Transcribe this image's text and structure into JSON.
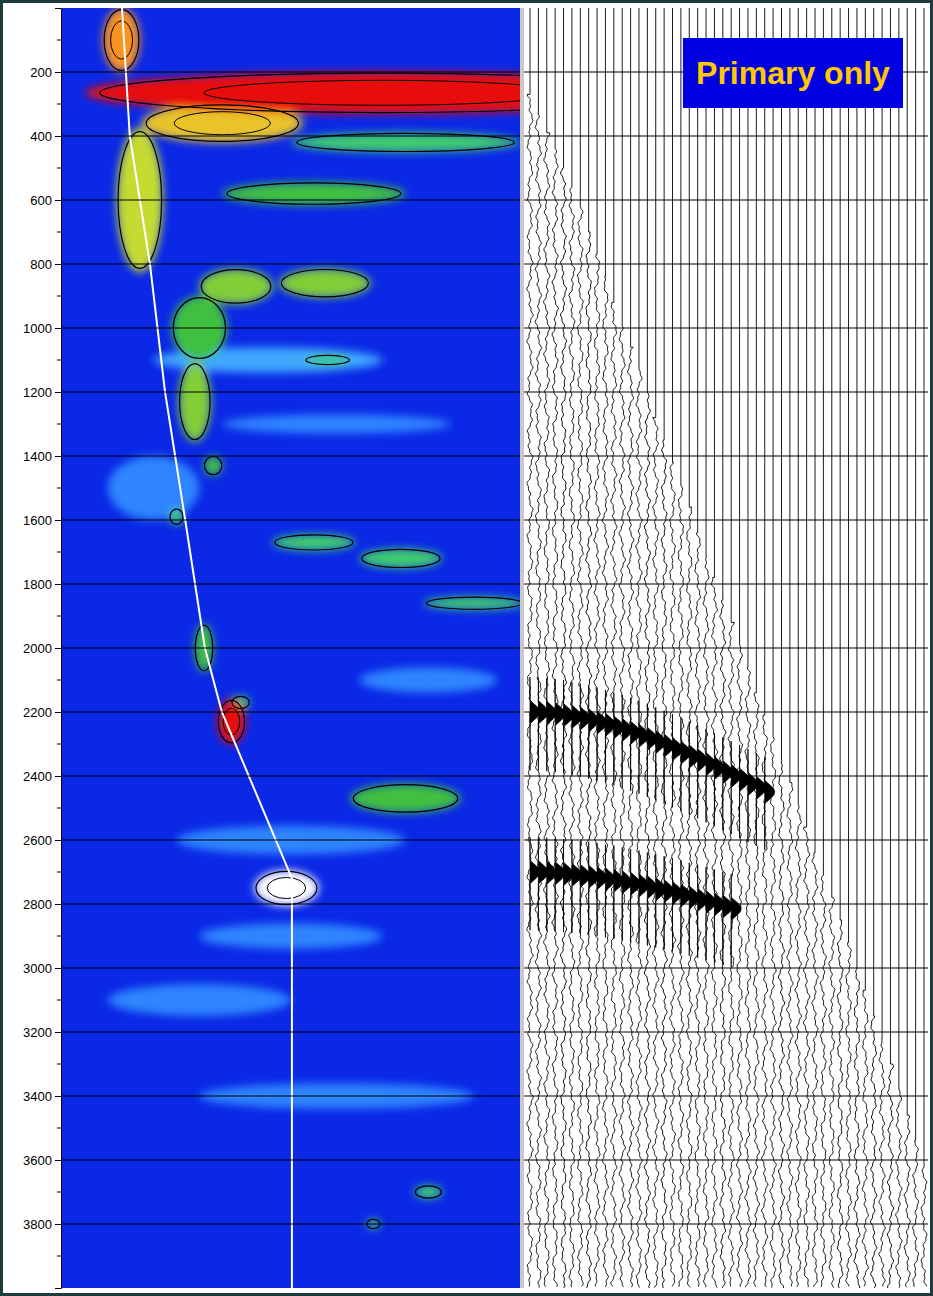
{
  "chart_data": {
    "type": "seismic",
    "annotation": "Primary only",
    "ylim": [
      0,
      4000
    ],
    "yticks": [
      200,
      400,
      600,
      800,
      1000,
      1200,
      1400,
      1600,
      1800,
      2000,
      2200,
      2400,
      2600,
      2800,
      3000,
      3200,
      3400,
      3600,
      3800
    ],
    "minor_yticks": [
      100,
      300,
      500,
      700,
      900,
      1100,
      1300,
      1500,
      1700,
      1900,
      2100,
      2300,
      2500,
      2700,
      2900,
      3100,
      3300,
      3500,
      3700,
      3900
    ],
    "grid": true,
    "tick_labels": "y",
    "xlim": [
      0,
      1
    ],
    "path": {
      "color": "#ffffff",
      "x": [
        0.131,
        0.148,
        0.192,
        0.225,
        0.269,
        0.312,
        0.349,
        0.502,
        0.502
      ],
      "y": [
        0,
        400,
        800,
        1200,
        1600,
        2000,
        2200,
        2720,
        4000
      ]
    },
    "amplitude_range": [
      0,
      1
    ],
    "anomalies": {
      "x": [
        0.45,
        0.6,
        0.2,
        0.8,
        0.5,
        0.5,
        0.3,
        0.6,
        0.75,
        0.55,
        0.58,
        0.55,
        0.74,
        0.9,
        0.25,
        0.39,
        0.68,
        0.8,
        0.31,
        0.33,
        0.3,
        0.75,
        0.38,
        0.574,
        0.29,
        0.17,
        0.35,
        0.13,
        0.7,
        0.37,
        0.49
      ],
      "y": [
        1100,
        1300,
        1500,
        2100,
        2600,
        2900,
        3100,
        3400,
        420,
        580,
        1100,
        1670,
        1720,
        1860,
        1590,
        2170,
        3800,
        3700,
        2000,
        1430,
        1000,
        2470,
        870,
        860,
        1230,
        600,
        360,
        100,
        265,
        2230,
        2750
      ],
      "width": [
        0.5,
        0.5,
        0.2,
        0.3,
        0.5,
        0.4,
        0.4,
        0.6,
        0.5,
        0.4,
        0.1,
        0.18,
        0.18,
        0.22,
        0.03,
        0.04,
        0.03,
        0.06,
        0.04,
        0.04,
        0.12,
        0.24,
        0.16,
        0.2,
        0.07,
        0.1,
        0.35,
        0.08,
        1.3,
        0.06,
        0.14
      ],
      "height": [
        80,
        60,
        200,
        80,
        90,
        80,
        100,
        80,
        60,
        70,
        30,
        50,
        60,
        40,
        50,
        40,
        30,
        40,
        150,
        60,
        200,
        90,
        110,
        90,
        250,
        450,
        120,
        200,
        130,
        140,
        110
      ],
      "amplitude": [
        0.35,
        0.3,
        0.3,
        0.3,
        0.3,
        0.3,
        0.3,
        0.3,
        0.55,
        0.6,
        0.55,
        0.55,
        0.55,
        0.55,
        0.55,
        0.55,
        0.55,
        0.55,
        0.6,
        0.6,
        0.6,
        0.6,
        0.65,
        0.65,
        0.65,
        0.7,
        0.75,
        0.8,
        0.93,
        0.93,
        1.0
      ]
    },
    "traces": {
      "first_break": [
        270,
        330,
        390,
        440,
        500,
        560,
        620,
        700,
        770,
        840,
        920,
        990,
        1060,
        1130,
        1200,
        1280,
        1350,
        1420,
        1490,
        1560,
        1640,
        1710,
        1780,
        1850,
        1920,
        1990,
        2060,
        2140,
        2210,
        2280,
        2350,
        2420,
        2490,
        2560,
        2640,
        2710,
        2780,
        2850,
        2920,
        3000,
        3070,
        3150,
        3220,
        3300,
        3380,
        3460,
        3540,
        3620
      ]
    },
    "events": [
      {
        "times": [
          2200,
          2201,
          2203,
          2206,
          2210,
          2215,
          2220,
          2226,
          2233,
          2240,
          2248,
          2256,
          2265,
          2274,
          2284,
          2294,
          2305,
          2316,
          2327,
          2339,
          2351,
          2363,
          2375,
          2388,
          2400,
          2412,
          2425,
          2437,
          2450
        ]
      },
      {
        "times": [
          2700,
          2701,
          2702,
          2704,
          2706,
          2709,
          2712,
          2715,
          2719,
          2723,
          2727,
          2732,
          2737,
          2742,
          2748,
          2754,
          2760,
          2766,
          2773,
          2780,
          2787,
          2794,
          2801,
          2808,
          2815
        ]
      }
    ]
  }
}
